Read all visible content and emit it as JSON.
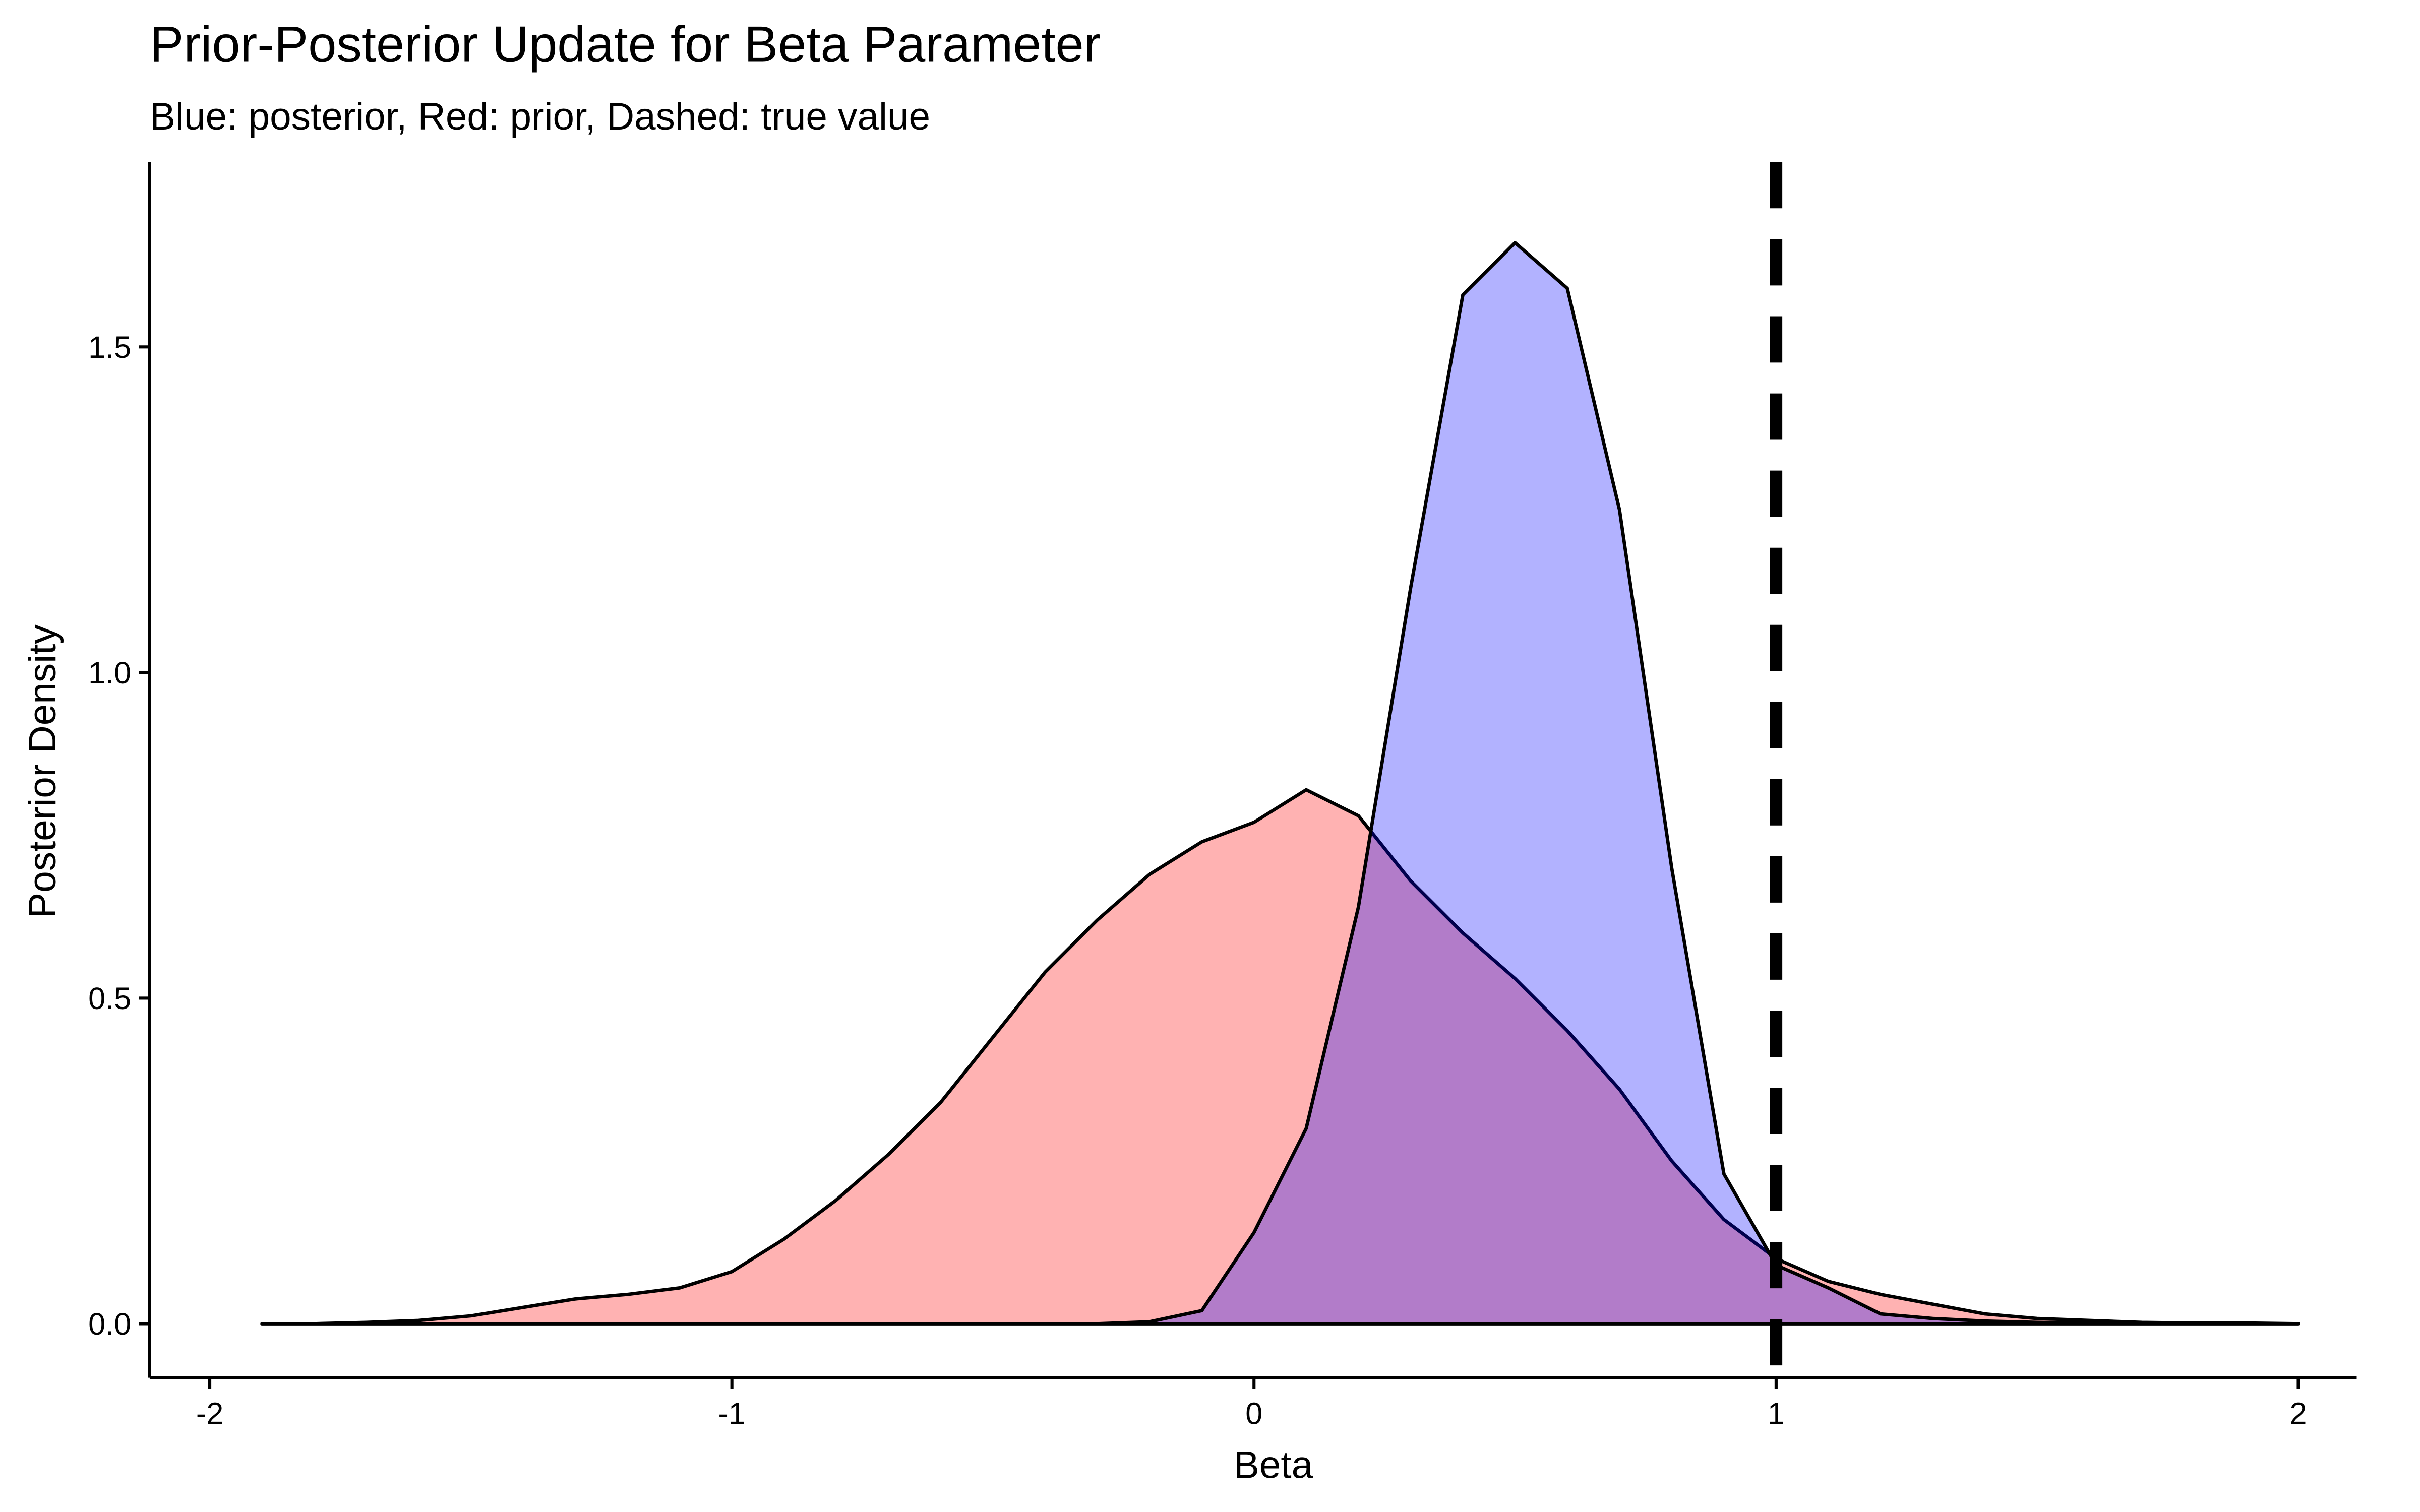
{
  "chart_data": {
    "type": "density",
    "title": "Prior-Posterior Update for Beta Parameter",
    "subtitle": "Blue: posterior, Red: prior, Dashed: true value",
    "x_label": "Beta",
    "y_label": "Posterior Density",
    "x": [
      -1.9,
      -1.8,
      -1.7,
      -1.6,
      -1.5,
      -1.4,
      -1.3,
      -1.2,
      -1.1,
      -1.0,
      -0.9,
      -0.8,
      -0.7,
      -0.6,
      -0.5,
      -0.4,
      -0.3,
      -0.2,
      -0.1,
      0.0,
      0.1,
      0.2,
      0.3,
      0.4,
      0.5,
      0.6,
      0.7,
      0.8,
      0.9,
      1.0,
      1.1,
      1.2,
      1.3,
      1.4,
      1.5,
      1.6,
      1.7,
      1.8,
      1.9,
      2.0
    ],
    "series": [
      {
        "color": "#ff0000",
        "values": [
          0,
          0,
          0.002,
          0.005,
          0.012,
          0.025,
          0.038,
          0.045,
          0.055,
          0.08,
          0.13,
          0.19,
          0.26,
          0.34,
          0.44,
          0.54,
          0.62,
          0.69,
          0.74,
          0.77,
          0.82,
          0.78,
          0.68,
          0.6,
          0.53,
          0.45,
          0.36,
          0.25,
          0.16,
          0.1,
          0.065,
          0.045,
          0.03,
          0.015,
          0.008,
          0.005,
          0.002,
          0.001,
          0.001,
          0
        ]
      },
      {
        "color": "#0000ff",
        "values": [
          0,
          0,
          0,
          0,
          0,
          0,
          0,
          0,
          0,
          0,
          0,
          0,
          0,
          0,
          0,
          0,
          0,
          0.003,
          0.02,
          0.14,
          0.3,
          0.64,
          1.13,
          1.58,
          1.66,
          1.59,
          1.25,
          0.7,
          0.23,
          0.09,
          0.055,
          0.015,
          0.008,
          0.004,
          0.002,
          0.001,
          0,
          0,
          0,
          0
        ]
      }
    ],
    "vline": 1,
    "xlim": [
      -2.115,
      2.112
    ],
    "ylim": [
      -0.083,
      1.784
    ],
    "xticks": [
      -2,
      -1,
      0,
      1,
      2
    ],
    "yticks": [
      {
        "value": 0,
        "label": "0.0"
      },
      0.5,
      {
        "value": 1,
        "label": "1.0"
      },
      1.5
    ]
  }
}
